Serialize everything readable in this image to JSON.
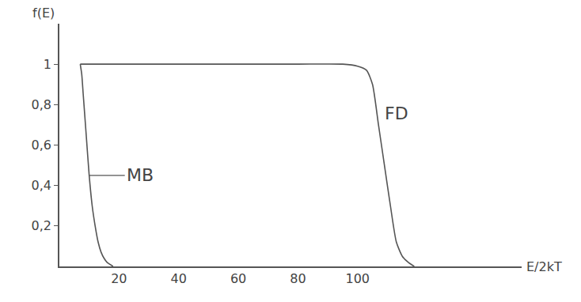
{
  "chart_data": {
    "type": "line",
    "x_label": "E/2kT",
    "y_label": "f(E)",
    "xlim": [
      0,
      155
    ],
    "ylim": [
      0,
      1.2
    ],
    "xticks": [
      20,
      40,
      60,
      80,
      100
    ],
    "yticks": [
      {
        "value": 0.2,
        "label": "0,2"
      },
      {
        "value": 0.4,
        "label": "0,4"
      },
      {
        "value": 0.6,
        "label": "0,6"
      },
      {
        "value": 0.8,
        "label": "0,8"
      },
      1
    ],
    "grid": false,
    "series": [
      {
        "name": "MB",
        "color": "#555555",
        "x": [
          7,
          7.5,
          8,
          9,
          10,
          11,
          12,
          13,
          14,
          15,
          16,
          17,
          18
        ],
        "values": [
          1,
          0.95,
          0.85,
          0.65,
          0.45,
          0.3,
          0.2,
          0.12,
          0.07,
          0.04,
          0.02,
          0.01,
          0
        ]
      },
      {
        "name": "FD",
        "color": "#555555",
        "x": [
          7,
          20,
          40,
          60,
          80,
          95,
          100,
          103,
          105,
          107,
          109,
          111,
          113,
          115,
          117,
          119
        ],
        "values": [
          1,
          1,
          1,
          1,
          1,
          1,
          0.99,
          0.97,
          0.9,
          0.7,
          0.5,
          0.3,
          0.12,
          0.05,
          0.02,
          0
        ]
      }
    ]
  }
}
